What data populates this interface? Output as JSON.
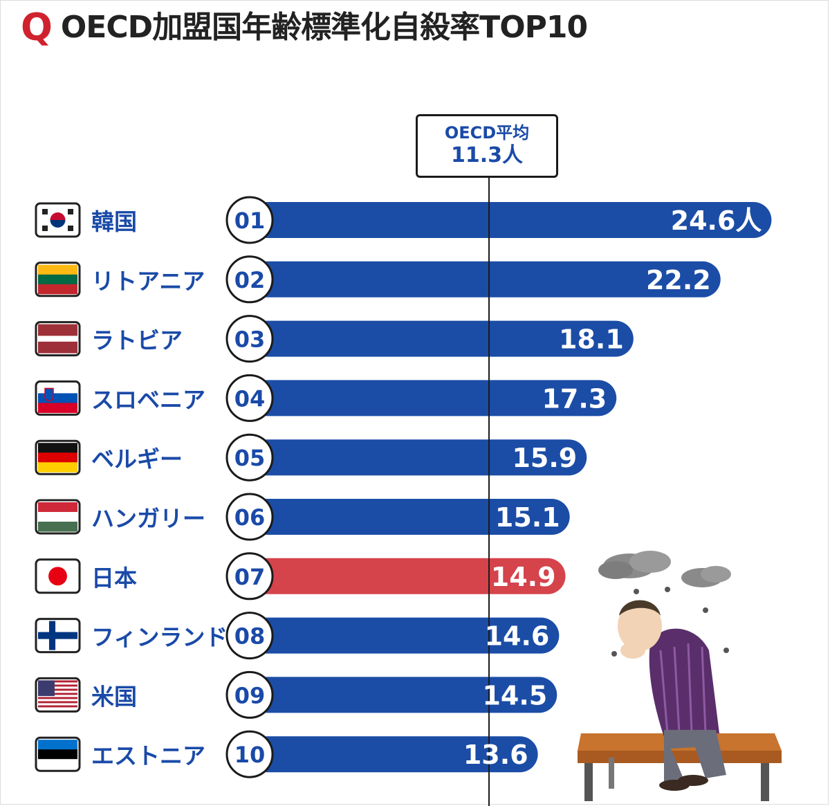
{
  "header": {
    "mark": "Q",
    "title": "OECD加盟国年齢標準化自殺率TOP10"
  },
  "average": {
    "label": "OECD平均",
    "value_text": "11.3人",
    "value": 11.3
  },
  "colors": {
    "bar": "#1b4da6",
    "highlight": "#d5434b",
    "title_mark": "#d0222e",
    "country_text": "#1a4aa8"
  },
  "chart_data": {
    "type": "bar",
    "orientation": "horizontal",
    "title": "OECD加盟国年齢標準化自殺率TOP10",
    "unit": "人",
    "reference_line": {
      "label": "OECD平均",
      "value": 11.3
    },
    "highlight_category": "日本",
    "ranks": [
      "01",
      "02",
      "03",
      "04",
      "05",
      "06",
      "07",
      "08",
      "09",
      "10"
    ],
    "categories": [
      "韓国",
      "リトアニア",
      "ラトビア",
      "スロベニア",
      "ベルギー",
      "ハンガリー",
      "日本",
      "フィンランド",
      "米国",
      "エストニア"
    ],
    "flags": [
      "korea-flag",
      "lithuania-flag",
      "latvia-flag",
      "slovenia-flag",
      "belgium-flag",
      "hungary-flag",
      "japan-flag",
      "finland-flag",
      "usa-flag",
      "estonia-flag"
    ],
    "values": [
      24.6,
      22.2,
      18.1,
      17.3,
      15.9,
      15.1,
      14.9,
      14.6,
      14.5,
      13.6
    ],
    "value_labels": [
      "24.6人",
      "22.2",
      "18.1",
      "17.3",
      "15.9",
      "15.1",
      "14.9",
      "14.6",
      "14.5",
      "13.6"
    ]
  }
}
